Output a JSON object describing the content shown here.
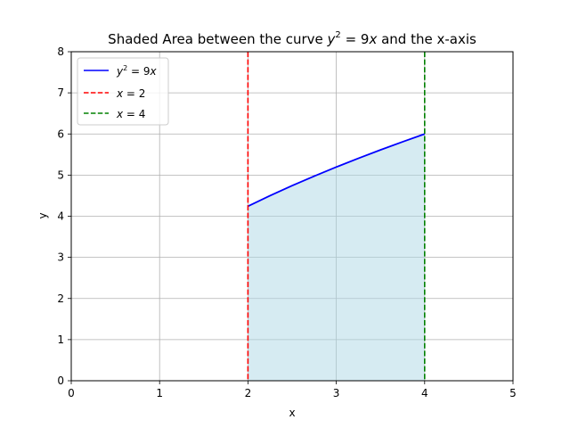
{
  "chart_data": {
    "type": "line",
    "title": "Shaded Area between the curve y² = 9x and the x-axis",
    "title_parts": {
      "prefix": "Shaded Area between the curve ",
      "y": "y",
      "exp": "2",
      "eq": " = 9",
      "x": "x",
      "suffix": " and the x-axis"
    },
    "xlabel": "x",
    "ylabel": "y",
    "xlim": [
      0,
      5
    ],
    "ylim": [
      0,
      8
    ],
    "xticks": [
      0,
      1,
      2,
      3,
      4,
      5
    ],
    "yticks": [
      0,
      1,
      2,
      3,
      4,
      5,
      6,
      7,
      8
    ],
    "xtick_labels": [
      "0",
      "1",
      "2",
      "3",
      "4",
      "5"
    ],
    "ytick_labels": [
      "0",
      "1",
      "2",
      "3",
      "4",
      "5",
      "6",
      "7",
      "8"
    ],
    "grid": true,
    "legend_position": "top-left",
    "curve": {
      "equation": "y = sqrt(9x)",
      "x": [
        2.0,
        2.25,
        2.5,
        2.75,
        3.0,
        3.25,
        3.5,
        3.75,
        4.0
      ],
      "y": [
        4.243,
        4.5,
        4.743,
        4.975,
        5.196,
        5.408,
        5.612,
        5.809,
        6.0
      ],
      "color": "#0000ff"
    },
    "vlines": [
      {
        "x": 2,
        "color": "#ff0000",
        "style": "dashed"
      },
      {
        "x": 4,
        "color": "#008000",
        "style": "dashed"
      }
    ],
    "fill": {
      "x_from": 2,
      "x_to": 4,
      "color": "#add8e6",
      "alpha": 0.5
    },
    "legend": [
      {
        "id": "curve",
        "color": "#0000ff",
        "style": "solid",
        "lhs_var": "y",
        "lhs_exp": "2",
        "rhs_prefix": " = 9",
        "rhs_var": "x"
      },
      {
        "id": "x2",
        "color": "#ff0000",
        "style": "dashed",
        "lhs_var": "x",
        "rhs_prefix": " = 2"
      },
      {
        "id": "x4",
        "color": "#008000",
        "style": "dashed",
        "lhs_var": "x",
        "rhs_prefix": " = 4"
      }
    ]
  }
}
